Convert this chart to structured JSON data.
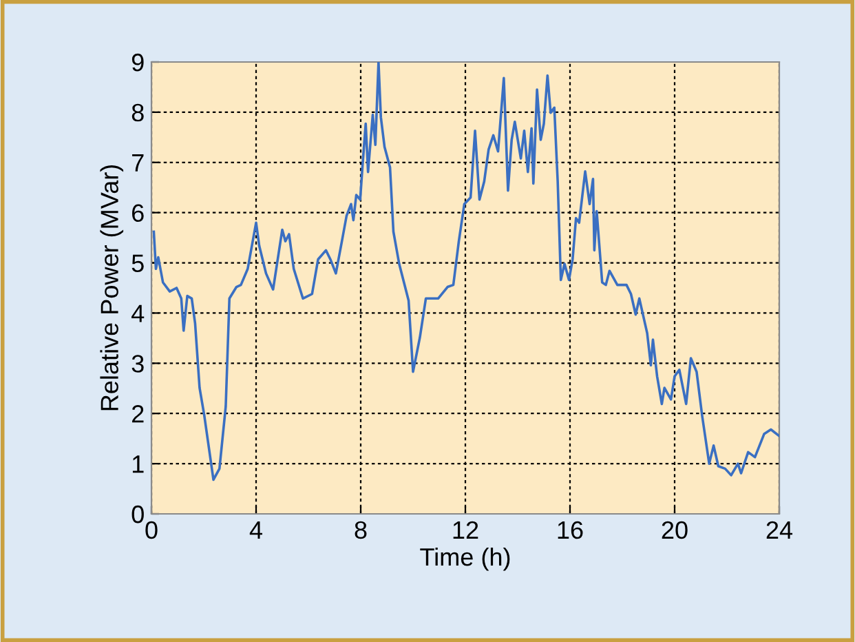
{
  "chart_data": {
    "type": "line",
    "xlabel": "Time (h)",
    "ylabel": "Relative Power (MVar)",
    "xlim": [
      0,
      24
    ],
    "ylim": [
      0,
      9
    ],
    "xticks": [
      0,
      4,
      8,
      12,
      16,
      20,
      24
    ],
    "yticks": [
      0,
      1,
      2,
      3,
      4,
      5,
      6,
      7,
      8,
      9
    ],
    "grid": true,
    "line_style": "solid",
    "marker": "none",
    "series": [
      {
        "color": "#3a6fc2",
        "x": [
          0.09,
          0.17,
          0.26,
          0.44,
          0.7,
          0.96,
          1.14,
          1.23,
          1.37,
          1.54,
          1.67,
          1.84,
          2.02,
          2.37,
          2.6,
          2.84,
          2.98,
          3.25,
          3.42,
          3.68,
          4.0,
          4.12,
          4.38,
          4.65,
          5.0,
          5.12,
          5.26,
          5.44,
          5.79,
          6.14,
          6.37,
          6.67,
          6.84,
          7.05,
          7.28,
          7.46,
          7.63,
          7.72,
          7.83,
          7.98,
          8.07,
          8.19,
          8.28,
          8.46,
          8.56,
          8.68,
          8.77,
          8.91,
          9.12,
          9.25,
          9.47,
          9.83,
          10.0,
          10.26,
          10.49,
          10.96,
          11.32,
          11.54,
          11.75,
          11.96,
          12.2,
          12.37,
          12.54,
          12.72,
          12.89,
          13.07,
          13.25,
          13.47,
          13.63,
          13.77,
          13.89,
          14.12,
          14.25,
          14.39,
          14.53,
          14.6,
          14.74,
          14.88,
          15.0,
          15.14,
          15.26,
          15.4,
          15.53,
          15.65,
          15.79,
          15.96,
          16.1,
          16.23,
          16.35,
          16.58,
          16.75,
          16.88,
          16.93,
          17.02,
          17.23,
          17.37,
          17.51,
          17.81,
          18.16,
          18.33,
          18.51,
          18.65,
          18.95,
          19.09,
          19.17,
          19.33,
          19.51,
          19.61,
          19.86,
          20.0,
          20.18,
          20.44,
          20.62,
          20.84,
          21.05,
          21.32,
          21.49,
          21.67,
          21.93,
          22.16,
          22.42,
          22.54,
          22.81,
          23.07,
          23.42,
          23.68,
          24.0
        ],
        "values": [
          5.62,
          4.88,
          5.11,
          4.61,
          4.43,
          4.5,
          4.29,
          3.65,
          4.34,
          4.29,
          3.79,
          2.51,
          1.96,
          0.68,
          0.9,
          2.14,
          4.29,
          4.52,
          4.56,
          4.88,
          5.8,
          5.34,
          4.79,
          4.47,
          5.66,
          5.43,
          5.57,
          4.88,
          4.29,
          4.38,
          5.07,
          5.25,
          5.07,
          4.79,
          5.43,
          5.94,
          6.17,
          5.85,
          6.35,
          6.26,
          6.94,
          7.77,
          6.81,
          7.95,
          7.35,
          9.0,
          7.9,
          7.31,
          6.9,
          5.62,
          4.98,
          4.25,
          2.83,
          3.51,
          4.29,
          4.29,
          4.52,
          4.56,
          5.43,
          6.17,
          6.3,
          7.63,
          6.26,
          6.62,
          7.26,
          7.54,
          7.22,
          8.68,
          6.44,
          7.45,
          7.81,
          7.08,
          7.63,
          6.81,
          7.68,
          6.58,
          8.45,
          7.45,
          7.77,
          8.73,
          7.99,
          8.09,
          6.62,
          4.66,
          4.98,
          4.66,
          5.07,
          5.89,
          5.8,
          6.82,
          6.17,
          6.67,
          5.25,
          6.03,
          4.61,
          4.56,
          4.84,
          4.56,
          4.56,
          4.38,
          3.97,
          4.29,
          3.6,
          2.96,
          3.47,
          2.74,
          2.19,
          2.51,
          2.28,
          2.74,
          2.87,
          2.19,
          3.1,
          2.83,
          1.96,
          1.0,
          1.36,
          0.95,
          0.9,
          0.77,
          1.0,
          0.81,
          1.23,
          1.13,
          1.59,
          1.68,
          1.55
        ]
      }
    ]
  }
}
